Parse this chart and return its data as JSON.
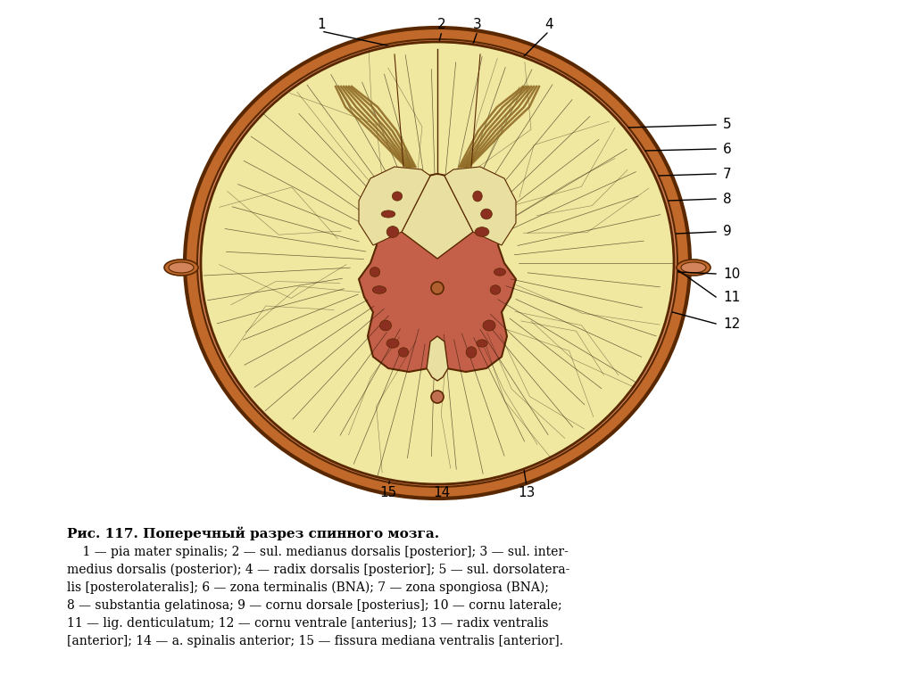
{
  "title": "Рис. 117. Поперечный разрез спинного мозга.",
  "caption_lines": [
    "    1 — pia mater spinalis; 2 — sul. medianus dorsalis [posterior]; 3 — sul. inter-",
    "medius dorsalis (posterior); 4 — radix dorsalis [posterior]; 5 — sul. dorsolatera-",
    "lis [posterolateralis]; 6 — zona terminalis (BNA); 7 — zona spongiosa (BNA);",
    "8 — substantia gelatinosa; 9 — cornu dorsale [posterius]; 10 — cornu laterale;",
    "11 — lig. denticulatum; 12 — cornu ventrale [anterius]; 13 — radix ventralis",
    "[anterior]; 14 — a. spinalis anterior; 15 — fissura mediana ventralis [anterior]."
  ],
  "bg_color": "#ffffff",
  "outer_ring_outer_color": "#c0692a",
  "outer_ring_inner_color": "#d4845a",
  "white_matter_color": "#f0e8a0",
  "gray_matter_color": "#c4604a",
  "dark_brown": "#5a2800",
  "nerve_color": "#2a1505",
  "root_color": "#8b6520",
  "nuclei_color": "#8b3020"
}
